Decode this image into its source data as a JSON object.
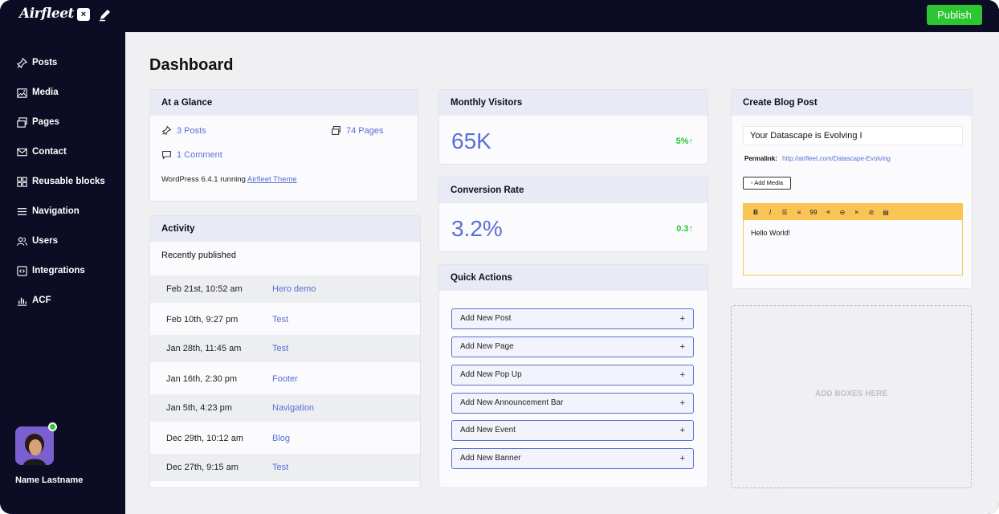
{
  "topbar": {
    "logo": "Airfleet",
    "publish_label": "Publish"
  },
  "sidebar": {
    "items": [
      {
        "label": "Posts",
        "icon": "pin-icon"
      },
      {
        "label": "Media",
        "icon": "image-icon"
      },
      {
        "label": "Pages",
        "icon": "pages-icon"
      },
      {
        "label": "Contact",
        "icon": "mail-icon"
      },
      {
        "label": "Reusable blocks",
        "icon": "blocks-icon"
      },
      {
        "label": "Navigation",
        "icon": "menu-icon"
      },
      {
        "label": "Users",
        "icon": "users-icon"
      },
      {
        "label": "Integrations",
        "icon": "integrations-icon"
      },
      {
        "label": "ACF",
        "icon": "chart-icon"
      }
    ],
    "user_name": "Name Lastname"
  },
  "main": {
    "title": "Dashboard",
    "at_a_glance": {
      "title": "At a Glance",
      "posts": "3 Posts",
      "pages": "74 Pages",
      "comments": "1 Comment",
      "wp_prefix": "WordPress 6.4.1 running",
      "theme_link": "Airfleet Theme"
    },
    "activity": {
      "title": "Activity",
      "subtitle": "Recently published",
      "rows": [
        {
          "date": "Feb 21st, 10:52 am",
          "link": "Hero demo"
        },
        {
          "date": "Feb 10th, 9:27 pm",
          "link": "Test"
        },
        {
          "date": "Jan 28th, 11:45 am",
          "link": "Test"
        },
        {
          "date": "Jan 16th, 2:30 pm",
          "link": "Footer"
        },
        {
          "date": "Jan 5th, 4:23 pm",
          "link": "Navigation"
        },
        {
          "date": "Dec 29th, 10:12 am",
          "link": "Blog"
        },
        {
          "date": "Dec 27th, 9:15 am",
          "link": "Test"
        }
      ]
    },
    "monthly_visitors": {
      "title": "Monthly Visitors",
      "value": "65K",
      "delta": "5%↑"
    },
    "conversion_rate": {
      "title": "Conversion Rate",
      "value": "3.2%",
      "delta": "0.3↑"
    },
    "quick_actions": {
      "title": "Quick Actions",
      "items": [
        "Add New Post",
        "Add New Page",
        "Add New Pop Up",
        "Add New Announcement Bar",
        "Add New Event",
        "Add New Banner"
      ],
      "plus": "+"
    },
    "create_blog_post": {
      "title": "Create Blog Post",
      "post_title_value": "Your Datascape is Evolving  I",
      "permalink_label": "Permalink:",
      "permalink_url": "http://airfleet.com/Datascape-Evolving",
      "add_media_label": "Add Media",
      "toolbar": [
        "B",
        "I",
        "☰",
        "≡",
        "99",
        "⫷",
        "⊖",
        "⫸",
        "⊘",
        "▤"
      ],
      "editor_content": "Hello World!"
    },
    "dropzone_label": "ADD BOXES HERE"
  },
  "colors": {
    "sidebar_bg": "#0c0c24",
    "accent": "#5a6fd6",
    "publish_green": "#2bc631",
    "editor_toolbar": "#f9c453"
  }
}
